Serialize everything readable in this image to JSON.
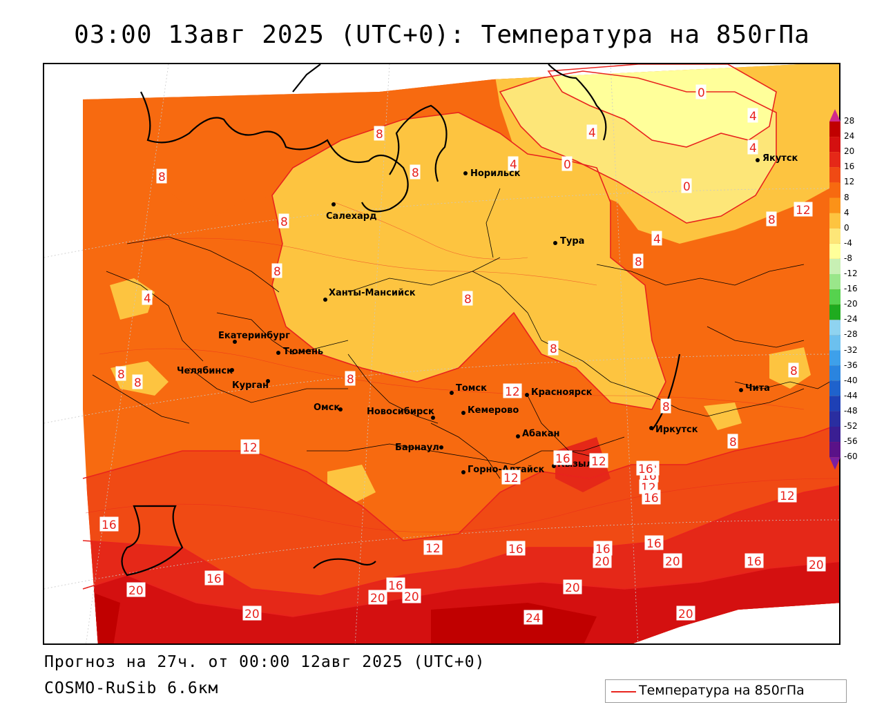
{
  "header": {
    "title": "03:00 13авг 2025 (UTC+0): Температура на 850гПа"
  },
  "footer": {
    "forecast": "Прогноз на 27ч. от 00:00 12авг 2025 (UTC+0)",
    "model": "COSMO-RuSib 6.6км"
  },
  "legend": {
    "line_label": "Температура на 850гПа",
    "line_color": "#e8231d",
    "scale_values": [
      "28",
      "24",
      "20",
      "16",
      "12",
      "8",
      "4",
      "0",
      "-4",
      "-8",
      "-12",
      "-16",
      "-20",
      "-24",
      "-28",
      "-32",
      "-36",
      "-40",
      "-44",
      "-48",
      "-52",
      "-56",
      "-60"
    ],
    "scale_colors": [
      "#c00000",
      "#d41010",
      "#e52818",
      "#f04a14",
      "#f76a10",
      "#fb9218",
      "#fdc440",
      "#fde678",
      "#ffff9a",
      "#c8f0b4",
      "#9ae68a",
      "#56d24e",
      "#1fab1f",
      "#8fd3f0",
      "#6cc0ee",
      "#3ea0ea",
      "#2a84df",
      "#1f62cc",
      "#1e40b5",
      "#2a2ea0",
      "#3a1e92",
      "#5a1288"
    ]
  },
  "cities": [
    {
      "name": "Норильск"
    },
    {
      "name": "Якутск"
    },
    {
      "name": "Салехард"
    },
    {
      "name": "Тура"
    },
    {
      "name": "Ханты-Мансийск"
    },
    {
      "name": "Екатеринбург"
    },
    {
      "name": "Тюмень"
    },
    {
      "name": "Челябинск"
    },
    {
      "name": "Курган"
    },
    {
      "name": "Томск"
    },
    {
      "name": "Красноярск"
    },
    {
      "name": "Омск"
    },
    {
      "name": "Новосибирск"
    },
    {
      "name": "Кемерово"
    },
    {
      "name": "Абакан"
    },
    {
      "name": "Барнаул"
    },
    {
      "name": "Горно-Алтайск"
    },
    {
      "name": "Кызыл"
    },
    {
      "name": "Иркутск"
    },
    {
      "name": "Чита"
    }
  ],
  "isotherm_labels": [
    "0",
    "0",
    "0",
    "4",
    "4",
    "4",
    "4",
    "4",
    "4",
    "8",
    "8",
    "8",
    "8",
    "8",
    "8",
    "8",
    "8",
    "8",
    "8",
    "8",
    "8",
    "8",
    "8",
    "12",
    "12",
    "12",
    "12",
    "12",
    "12",
    "12",
    "12",
    "12",
    "16",
    "16",
    "16",
    "16",
    "16",
    "16",
    "16",
    "16",
    "16",
    "16",
    "16",
    "20",
    "20",
    "20",
    "20",
    "20",
    "20",
    "20",
    "20",
    "20",
    "24"
  ]
}
